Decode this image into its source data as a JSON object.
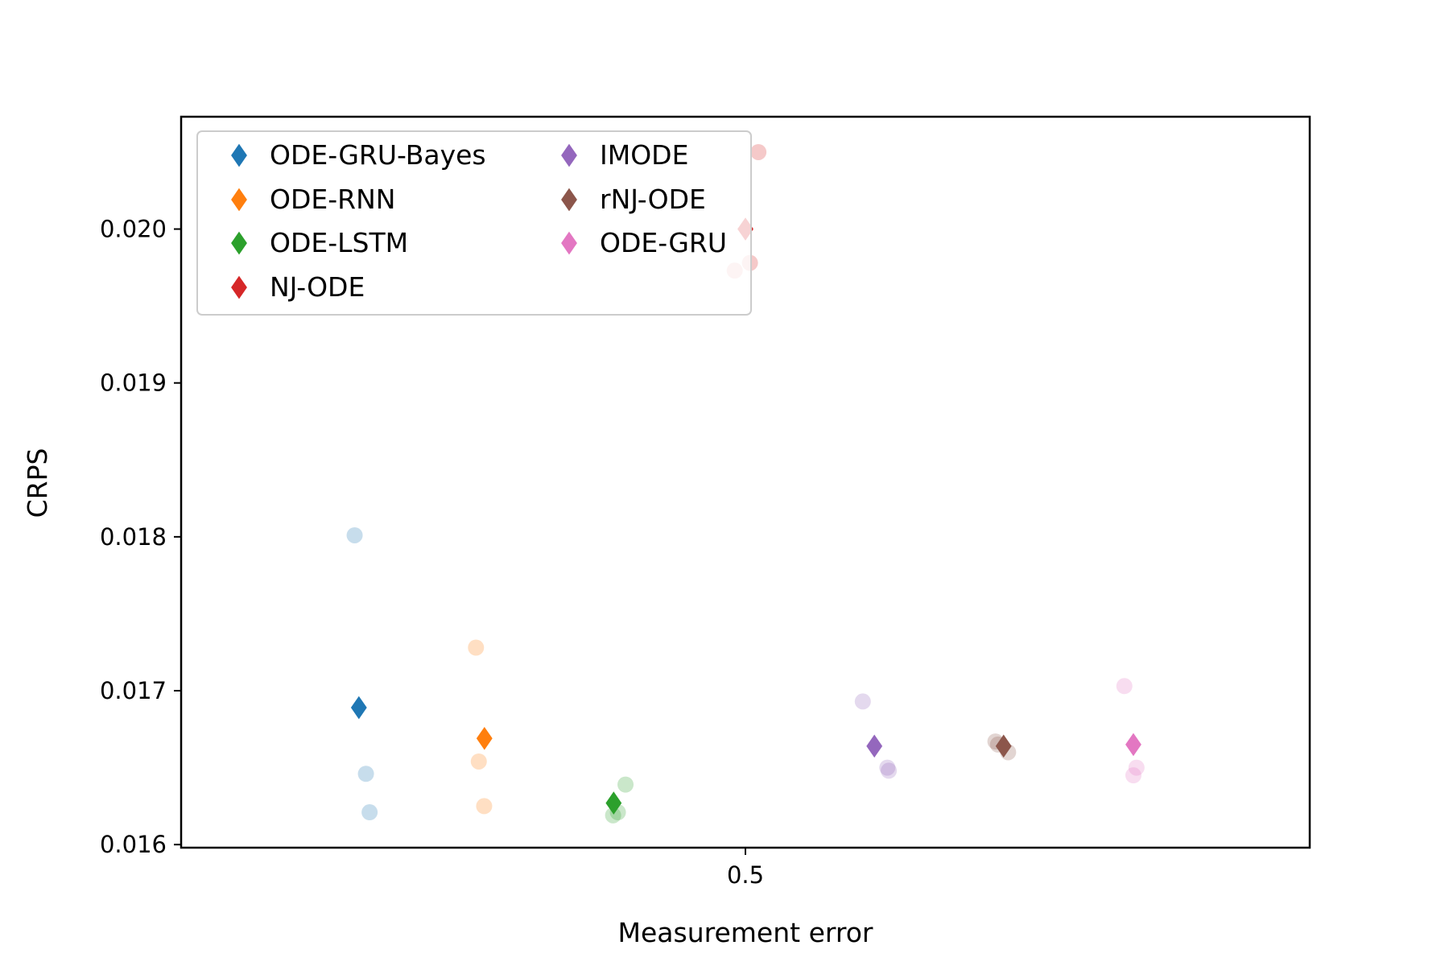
{
  "chart_data": {
    "type": "scatter",
    "title": "",
    "xlabel": "Measurement error",
    "ylabel": "CRPS",
    "xlim": [
      0.3,
      0.7
    ],
    "ylim": [
      0.01598,
      0.02073
    ],
    "x_ticks": [
      {
        "value": 0.5,
        "label": "0.5"
      }
    ],
    "y_ticks": [
      {
        "value": 0.016,
        "label": "0.016"
      },
      {
        "value": 0.017,
        "label": "0.017"
      },
      {
        "value": 0.018,
        "label": "0.018"
      },
      {
        "value": 0.019,
        "label": "0.019"
      },
      {
        "value": 0.02,
        "label": "0.020"
      }
    ],
    "grid": false,
    "legend_position": "top-left",
    "legend_columns": 2,
    "marker_mean": "thin-diamond",
    "marker_runs": "circle",
    "series": [
      {
        "name": "ODE-GRU-Bayes",
        "color": "#1f77b4",
        "mean": {
          "x": 0.363,
          "y": 0.01689
        },
        "runs": [
          {
            "x": 0.3615,
            "y": 0.01801
          },
          {
            "x": 0.3655,
            "y": 0.01646
          },
          {
            "x": 0.3668,
            "y": 0.01621
          }
        ]
      },
      {
        "name": "ODE-RNN",
        "color": "#ff7f0e",
        "mean": {
          "x": 0.4075,
          "y": 0.01669
        },
        "runs": [
          {
            "x": 0.4045,
            "y": 0.01728
          },
          {
            "x": 0.4055,
            "y": 0.01654
          },
          {
            "x": 0.4074,
            "y": 0.01625
          }
        ]
      },
      {
        "name": "ODE-LSTM",
        "color": "#2ca02c",
        "mean": {
          "x": 0.4533,
          "y": 0.01627
        },
        "runs": [
          {
            "x": 0.4575,
            "y": 0.01639
          },
          {
            "x": 0.4548,
            "y": 0.01621
          },
          {
            "x": 0.4531,
            "y": 0.01619
          }
        ]
      },
      {
        "name": "NJ-ODE",
        "color": "#d62728",
        "mean": {
          "x": 0.5,
          "y": 0.02
        },
        "runs": [
          {
            "x": 0.5046,
            "y": 0.0205
          },
          {
            "x": 0.5016,
            "y": 0.01978
          },
          {
            "x": 0.4962,
            "y": 0.01973
          }
        ]
      },
      {
        "name": "IMODE",
        "color": "#9467bd",
        "mean": {
          "x": 0.5457,
          "y": 0.01664
        },
        "runs": [
          {
            "x": 0.5416,
            "y": 0.01693
          },
          {
            "x": 0.5503,
            "y": 0.0165
          },
          {
            "x": 0.5508,
            "y": 0.01648
          }
        ]
      },
      {
        "name": "rNJ-ODE",
        "color": "#8c564b",
        "mean": {
          "x": 0.5915,
          "y": 0.01664
        },
        "runs": [
          {
            "x": 0.5886,
            "y": 0.01667
          },
          {
            "x": 0.5895,
            "y": 0.01665
          },
          {
            "x": 0.5931,
            "y": 0.0166
          }
        ]
      },
      {
        "name": "ODE-GRU",
        "color": "#e377c2",
        "mean": {
          "x": 0.6375,
          "y": 0.01665
        },
        "runs": [
          {
            "x": 0.6343,
            "y": 0.01703
          },
          {
            "x": 0.6386,
            "y": 0.0165
          },
          {
            "x": 0.6375,
            "y": 0.01645
          }
        ]
      }
    ]
  }
}
